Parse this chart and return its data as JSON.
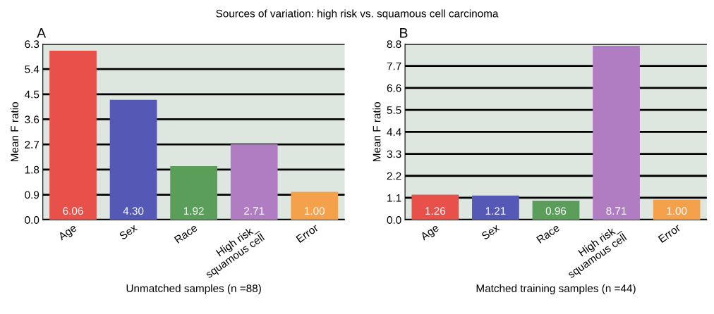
{
  "chart_data": [
    {
      "type": "bar",
      "title": "Sources of variation: high risk vs. squamous cell carcinoma",
      "annotations": [
        "A"
      ],
      "xlabel": "Unmatched samples (n =88)",
      "ylabel": "Mean F ratio",
      "categories": [
        "Age",
        "Sex",
        "Race",
        "High risk_\nsquamous cell",
        "Error"
      ],
      "values": [
        6.06,
        4.3,
        1.92,
        2.71,
        1.0
      ],
      "value_labels": [
        "6.06",
        "4.30",
        "1.92",
        "2.71",
        "1.00"
      ],
      "colors": [
        "#e8504a",
        "#5558b4",
        "#5a9e5a",
        "#b07cc2",
        "#f5a04a"
      ],
      "ylim": [
        0,
        6.3
      ],
      "yticks": [
        {
          "value": 0,
          "label": "0.0"
        },
        0.9,
        1.8,
        2.7,
        3.6,
        4.5,
        5.4,
        6.3
      ],
      "grid": "y"
    },
    {
      "type": "bar",
      "annotations": [
        "B"
      ],
      "xlabel": "Matched training samples (n =44)",
      "ylabel": "Mean F ratio",
      "categories": [
        "Age",
        "Sex",
        "Race",
        "High risk_\nsquamous cell",
        "Error"
      ],
      "values": [
        1.26,
        1.21,
        0.96,
        8.71,
        1.0
      ],
      "value_labels": [
        "1.26",
        "1.21",
        "0.96",
        "8.71",
        "1.00"
      ],
      "colors": [
        "#e8504a",
        "#5558b4",
        "#5a9e5a",
        "#b07cc2",
        "#f5a04a"
      ],
      "ylim": [
        0,
        8.8
      ],
      "yticks": [
        {
          "value": 0,
          "label": "0.0"
        },
        1.1,
        2.2,
        3.3,
        4.4,
        5.5,
        6.6,
        7.7,
        8.8
      ],
      "grid": "y"
    }
  ]
}
